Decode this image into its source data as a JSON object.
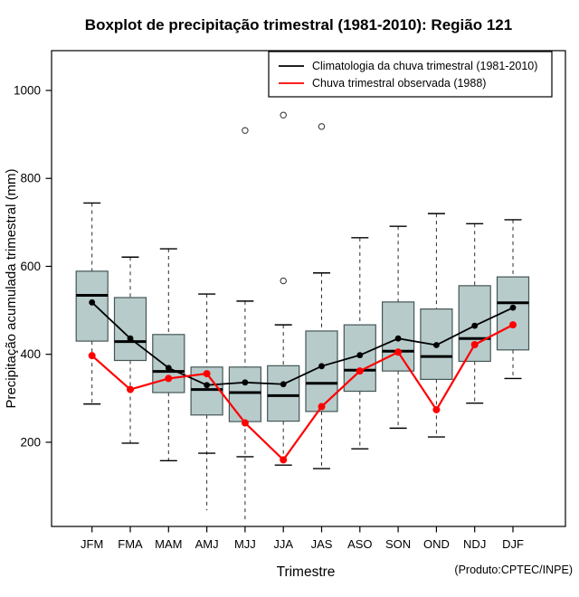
{
  "title": "Boxplot de precipitação trimestral (1981-2010): Região 121",
  "x_axis_label": "Trimestre",
  "y_axis_label": "Precipitação acumulada trimestral (mm)",
  "credit": "(Produto:CPTEC/INPE)",
  "legend": {
    "entries": [
      {
        "label": "Climatologia da chuva trimestral (1981-2010)",
        "color": "#000000"
      },
      {
        "label": "Chuva trimestral observada (1988)",
        "color": "#ff0000"
      }
    ],
    "position": "top-right",
    "border": true
  },
  "chart_data": {
    "type": "boxplot",
    "title": "Boxplot de precipitação trimestral (1981-2010): Região 121",
    "xlabel": "Trimestre",
    "ylabel": "Precipitação acumulada trimestral (mm)",
    "categories": [
      "JFM",
      "FMA",
      "MAM",
      "AMJ",
      "MJJ",
      "JJA",
      "JAS",
      "ASO",
      "SON",
      "OND",
      "NDJ",
      "DJF"
    ],
    "y_ticks": [
      200,
      400,
      600,
      800,
      1000
    ],
    "ylim": [
      10,
      1090
    ],
    "grid": false,
    "box_fill": "#b7cbcb",
    "box_border": "#455555",
    "boxes": [
      {
        "category": "JFM",
        "whisker_low": 287,
        "q1": 430,
        "median": 534,
        "q3": 589,
        "whisker_high": 744,
        "outliers": [],
        "tail_min": null
      },
      {
        "category": "FMA",
        "whisker_low": 198,
        "q1": 386,
        "median": 429,
        "q3": 529,
        "whisker_high": 621,
        "outliers": [],
        "tail_min": null
      },
      {
        "category": "MAM",
        "whisker_low": 158,
        "q1": 313,
        "median": 361,
        "q3": 445,
        "whisker_high": 640,
        "outliers": [],
        "tail_min": null
      },
      {
        "category": "AMJ",
        "whisker_low": 175,
        "q1": 262,
        "median": 320,
        "q3": 371,
        "whisker_high": 537,
        "outliers": [],
        "tail_min": 45
      },
      {
        "category": "MJJ",
        "whisker_low": 167,
        "q1": 247,
        "median": 313,
        "q3": 371,
        "whisker_high": 521,
        "outliers": [
          909
        ],
        "tail_min": 25
      },
      {
        "category": "JJA",
        "whisker_low": 148,
        "q1": 248,
        "median": 306,
        "q3": 374,
        "whisker_high": 467,
        "outliers": [
          567,
          944
        ],
        "tail_min": null
      },
      {
        "category": "JAS",
        "whisker_low": 140,
        "q1": 270,
        "median": 334,
        "q3": 453,
        "whisker_high": 585,
        "outliers": [
          918
        ],
        "tail_min": null
      },
      {
        "category": "ASO",
        "whisker_low": 185,
        "q1": 316,
        "median": 364,
        "q3": 467,
        "whisker_high": 665,
        "outliers": [],
        "tail_min": null
      },
      {
        "category": "SON",
        "whisker_low": 232,
        "q1": 362,
        "median": 407,
        "q3": 519,
        "whisker_high": 691,
        "outliers": [],
        "tail_min": null
      },
      {
        "category": "OND",
        "whisker_low": 212,
        "q1": 343,
        "median": 395,
        "q3": 503,
        "whisker_high": 720,
        "outliers": [],
        "tail_min": null
      },
      {
        "category": "NDJ",
        "whisker_low": 289,
        "q1": 384,
        "median": 436,
        "q3": 556,
        "whisker_high": 697,
        "outliers": [],
        "tail_min": null
      },
      {
        "category": "DJF",
        "whisker_low": 345,
        "q1": 410,
        "median": 517,
        "q3": 576,
        "whisker_high": 706,
        "outliers": [],
        "tail_min": null
      }
    ],
    "series": [
      {
        "name": "Climatologia da chuva trimestral (1981-2010)",
        "color": "#000000",
        "marker": "filled-circle",
        "values": [
          518,
          436,
          369,
          330,
          336,
          332,
          373,
          398,
          436,
          421,
          465,
          506
        ]
      },
      {
        "name": "Chuva trimestral observada (1988)",
        "color": "#ff0000",
        "marker": "filled-circle",
        "values": [
          397,
          320,
          345,
          356,
          244,
          160,
          281,
          362,
          405,
          274,
          422,
          467
        ]
      }
    ]
  }
}
